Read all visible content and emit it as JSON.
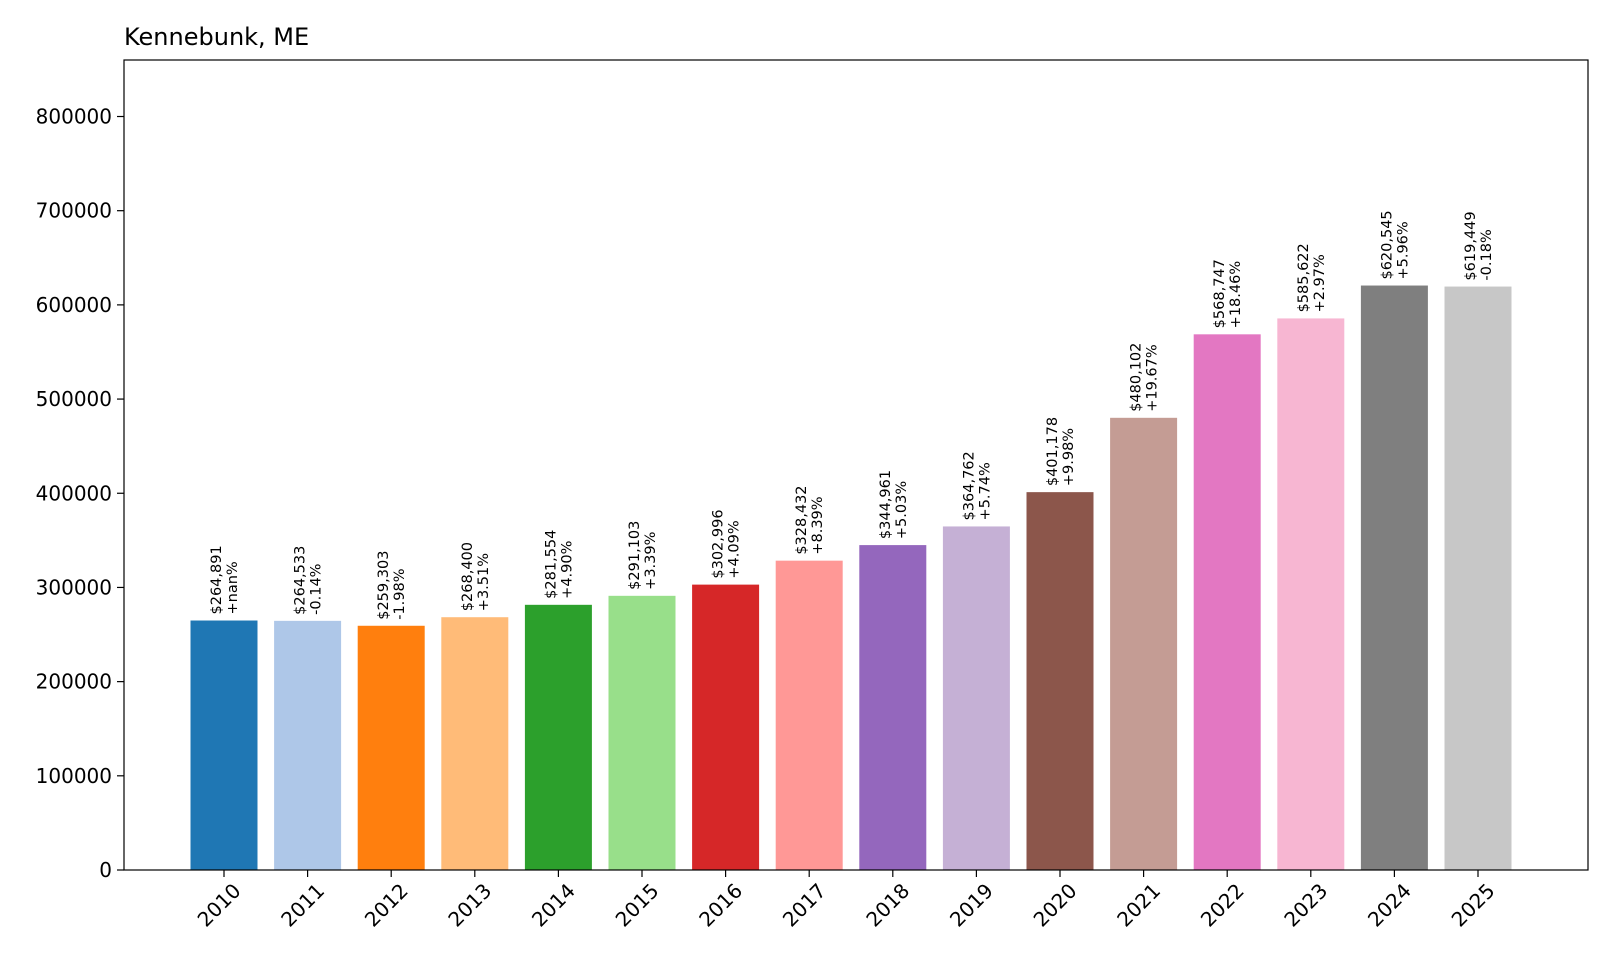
{
  "chart_data": {
    "type": "bar",
    "title": "Kennebunk, ME",
    "xlabel": "",
    "ylabel": "",
    "ylim": [
      0,
      860000
    ],
    "yticks": [
      0,
      100000,
      200000,
      300000,
      400000,
      500000,
      600000,
      700000,
      800000
    ],
    "ytick_labels": [
      "0",
      "100000",
      "200000",
      "300000",
      "400000",
      "500000",
      "600000",
      "700000",
      "800000"
    ],
    "grid": false,
    "categories": [
      "2010",
      "2011",
      "2012",
      "2013",
      "2014",
      "2015",
      "2016",
      "2017",
      "2018",
      "2019",
      "2020",
      "2021",
      "2022",
      "2023",
      "2024",
      "2025"
    ],
    "values": [
      264891,
      264533,
      259303,
      268400,
      281554,
      291103,
      302996,
      328432,
      344961,
      364762,
      401178,
      480102,
      568747,
      585622,
      620545,
      619449
    ],
    "value_labels": [
      "$264,891",
      "$264,533",
      "$259,303",
      "$268,400",
      "$281,554",
      "$291,103",
      "$302,996",
      "$328,432",
      "$344,961",
      "$364,762",
      "$401,178",
      "$480,102",
      "$568,747",
      "$585,622",
      "$620,545",
      "$619,449"
    ],
    "change_labels": [
      "+nan%",
      "-0.14%",
      "-1.98%",
      "+3.51%",
      "+4.90%",
      "+3.39%",
      "+4.09%",
      "+8.39%",
      "+5.03%",
      "+5.74%",
      "+9.98%",
      "+19.67%",
      "+18.46%",
      "+2.97%",
      "+5.96%",
      "-0.18%"
    ],
    "colors": [
      "#1f77b4",
      "#aec7e8",
      "#ff7f0e",
      "#ffbb78",
      "#2ca02c",
      "#98df8a",
      "#d62728",
      "#ff9896",
      "#9467bd",
      "#c5b0d5",
      "#8c564b",
      "#c49c94",
      "#e377c2",
      "#f7b6d2",
      "#7f7f7f",
      "#c7c7c7"
    ]
  }
}
